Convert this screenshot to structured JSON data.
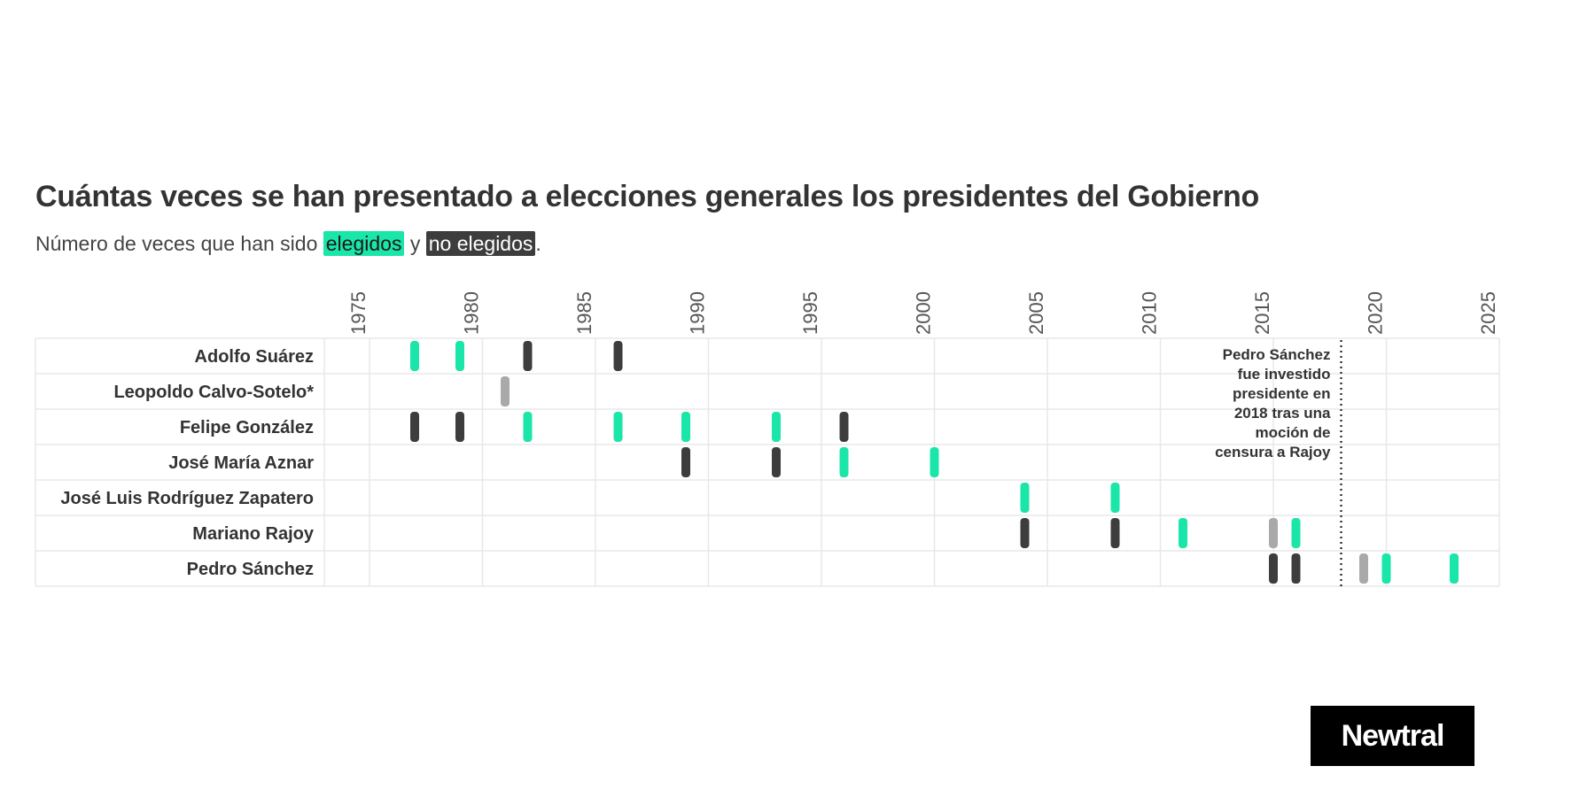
{
  "chart_data": {
    "type": "timeline",
    "title": "Cuántas veces se han presentado a elecciones generales los presidentes del Gobierno",
    "subtitle_parts": {
      "prefix": "Número de veces que han sido ",
      "elected": "elegidos",
      "middle": " y ",
      "not_elected": "no elegidos",
      "suffix": "."
    },
    "x_range": [
      1973,
      2025
    ],
    "x_ticks": [
      1975,
      1980,
      1985,
      1990,
      1995,
      2000,
      2005,
      2010,
      2015,
      2020,
      2025
    ],
    "rows": [
      {
        "name": "Adolfo Suárez",
        "events": [
          {
            "year": 1977,
            "status": "elegido"
          },
          {
            "year": 1979,
            "status": "elegido"
          },
          {
            "year": 1982,
            "status": "no elegido"
          },
          {
            "year": 1986,
            "status": "no elegido"
          }
        ]
      },
      {
        "name": "Leopoldo Calvo-Sotelo*",
        "events": [
          {
            "year": 1981,
            "status": "otro"
          }
        ]
      },
      {
        "name": "Felipe González",
        "events": [
          {
            "year": 1977,
            "status": "no elegido"
          },
          {
            "year": 1979,
            "status": "no elegido"
          },
          {
            "year": 1982,
            "status": "elegido"
          },
          {
            "year": 1986,
            "status": "elegido"
          },
          {
            "year": 1989,
            "status": "elegido"
          },
          {
            "year": 1993,
            "status": "elegido"
          },
          {
            "year": 1996,
            "status": "no elegido"
          }
        ]
      },
      {
        "name": "José María Aznar",
        "events": [
          {
            "year": 1989,
            "status": "no elegido"
          },
          {
            "year": 1993,
            "status": "no elegido"
          },
          {
            "year": 1996,
            "status": "elegido"
          },
          {
            "year": 2000,
            "status": "elegido"
          }
        ]
      },
      {
        "name": "José Luis Rodríguez Zapatero",
        "events": [
          {
            "year": 2004,
            "status": "elegido"
          },
          {
            "year": 2008,
            "status": "elegido"
          }
        ]
      },
      {
        "name": "Mariano Rajoy",
        "events": [
          {
            "year": 2004,
            "status": "no elegido"
          },
          {
            "year": 2008,
            "status": "no elegido"
          },
          {
            "year": 2011,
            "status": "elegido"
          },
          {
            "year": 2015,
            "status": "otro"
          },
          {
            "year": 2016,
            "status": "elegido"
          }
        ]
      },
      {
        "name": "Pedro Sánchez",
        "events": [
          {
            "year": 2015,
            "status": "no elegido"
          },
          {
            "year": 2016,
            "status": "no elegido"
          },
          {
            "year": 2019,
            "status": "otro"
          },
          {
            "year": 2020,
            "status": "elegido"
          },
          {
            "year": 2023,
            "status": "elegido"
          }
        ]
      }
    ],
    "reference_line": {
      "year": 2018,
      "annotation": [
        "Pedro Sánchez",
        "fue investido",
        "presidente en",
        "2018 tras una",
        "moción de",
        "censura a Rajoy"
      ]
    },
    "colors": {
      "elegido": "#19e6a8",
      "no elegido": "#3d3d3d",
      "otro": "#a9a9a9",
      "grid": "#e8e8e8",
      "label": "#333333",
      "tick": "#555555"
    }
  },
  "logo": {
    "text": "Newtral"
  }
}
